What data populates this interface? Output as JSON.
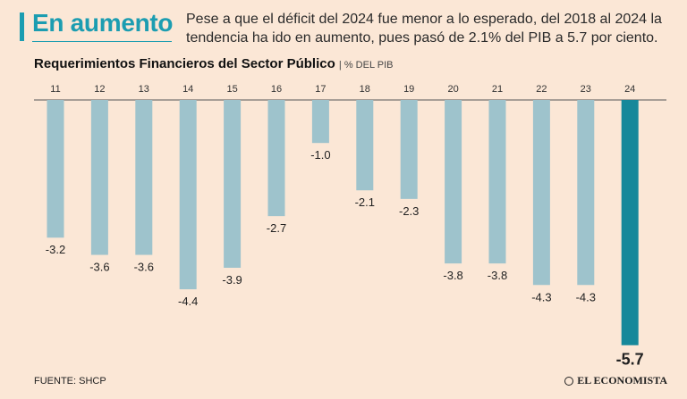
{
  "header": {
    "title": "En aumento",
    "subtitle": "Pese a que el déficit del 2024 fue menor a lo esperado, del 2018 al 2024 la tendencia ha ido en aumento, pues pasó de 2.1% del PIB a 5.7 por ciento."
  },
  "colors": {
    "accent": "#1c9db1",
    "bar": "#9ec3cc",
    "bar_highlight": "#16889a",
    "background": "#fbe7d6",
    "axis": "#555555"
  },
  "chart_data": {
    "type": "bar",
    "title": "Requerimientos Financieros del Sector Público",
    "unit": "% DEL PIB",
    "categories": [
      "11",
      "12",
      "13",
      "14",
      "15",
      "16",
      "17",
      "18",
      "19",
      "20",
      "21",
      "22",
      "23",
      "24"
    ],
    "values": [
      -3.2,
      -3.6,
      -3.6,
      -4.4,
      -3.9,
      -2.7,
      -1.0,
      -2.1,
      -2.3,
      -3.8,
      -3.8,
      -4.3,
      -4.3,
      -5.7
    ],
    "labels": [
      "-3.2",
      "-3.6",
      "-3.6",
      "-4.4",
      "-3.9",
      "-2.7",
      "-1.0",
      "-2.1",
      "-2.3",
      "-3.8",
      "-3.8",
      "-4.3",
      "-4.3",
      "-5.7"
    ],
    "highlight_index": 13,
    "ylim": [
      -5.7,
      0
    ],
    "grid": false,
    "legend": "none"
  },
  "footer": {
    "source": "FUENTE: SHCP",
    "brand": "EL ECONOMISTA"
  }
}
